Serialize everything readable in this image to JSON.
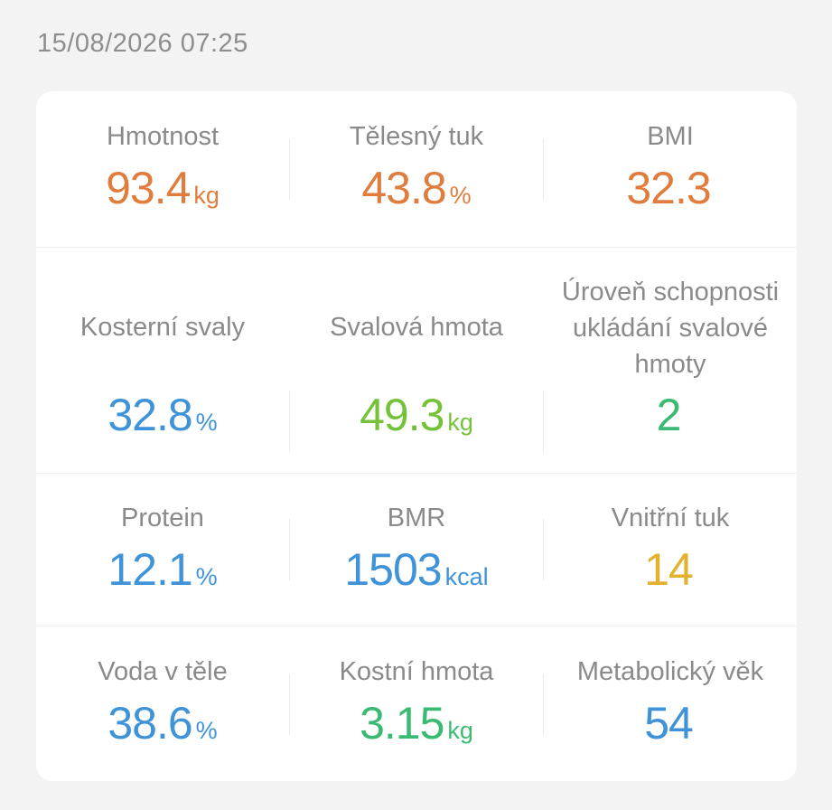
{
  "timestamp": "15/08/2026 07:25",
  "colors": {
    "orange": "#e07d3e",
    "blue": "#3f93d8",
    "green": "#75c23a",
    "teal": "#3aba73",
    "gold": "#e2b22e"
  },
  "metrics": [
    {
      "label": "Hmotnost",
      "value": "93.4",
      "unit": "kg",
      "color": "#e07d3e"
    },
    {
      "label": "Tělesný tuk",
      "value": "43.8",
      "unit": "%",
      "color": "#e07d3e"
    },
    {
      "label": "BMI",
      "value": "32.3",
      "unit": "",
      "color": "#e07d3e"
    },
    {
      "label": "Kosterní svaly",
      "value": "32.8",
      "unit": "%",
      "color": "#3f93d8"
    },
    {
      "label": "Svalová hmota",
      "value": "49.3",
      "unit": "kg",
      "color": "#75c23a"
    },
    {
      "label": "Úroveň schopnosti ukládání svalové hmoty",
      "value": "2",
      "unit": "",
      "color": "#3aba73"
    },
    {
      "label": "Protein",
      "value": "12.1",
      "unit": "%",
      "color": "#3f93d8"
    },
    {
      "label": "BMR",
      "value": "1503",
      "unit": "kcal",
      "color": "#3f93d8"
    },
    {
      "label": "Vnitřní tuk",
      "value": "14",
      "unit": "",
      "color": "#e2b22e"
    },
    {
      "label": "Voda v těle",
      "value": "38.6",
      "unit": "%",
      "color": "#3f93d8"
    },
    {
      "label": "Kostní hmota",
      "value": "3.15",
      "unit": "kg",
      "color": "#3aba73"
    },
    {
      "label": "Metabolický věk",
      "value": "54",
      "unit": "",
      "color": "#3f93d8"
    }
  ]
}
